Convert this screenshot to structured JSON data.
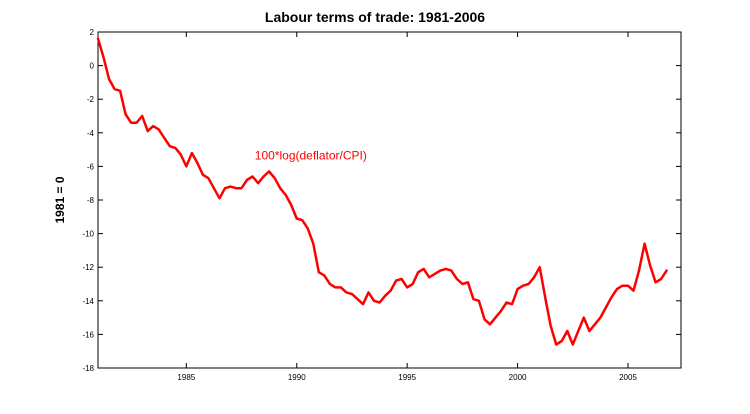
{
  "chart_data": {
    "type": "line",
    "title": "Labour terms of trade: 1981-2006",
    "xlabel": "",
    "ylabel": "1981 = 0",
    "xlim": [
      1981,
      2007.4
    ],
    "ylim": [
      -18,
      2
    ],
    "xticks": [
      1985,
      1990,
      1995,
      2000,
      2005
    ],
    "yticks": [
      2,
      0,
      -2,
      -4,
      -6,
      -8,
      -10,
      -12,
      -14,
      -16,
      -18
    ],
    "grid": false,
    "annotation": {
      "text": "100*log(deflator/CPI)",
      "x": 1988.1,
      "y": -5.6
    },
    "series": [
      {
        "name": "100*log(deflator/CPI)",
        "color": "#ff0000",
        "x": [
          1981.0,
          1981.25,
          1981.5,
          1981.75,
          1982.0,
          1982.25,
          1982.5,
          1982.75,
          1983.0,
          1983.25,
          1983.5,
          1983.75,
          1984.0,
          1984.25,
          1984.5,
          1984.75,
          1985.0,
          1985.25,
          1985.5,
          1985.75,
          1986.0,
          1986.25,
          1986.5,
          1986.75,
          1987.0,
          1987.25,
          1987.5,
          1987.75,
          1988.0,
          1988.25,
          1988.5,
          1988.75,
          1989.0,
          1989.25,
          1989.5,
          1989.75,
          1990.0,
          1990.25,
          1990.5,
          1990.75,
          1991.0,
          1991.25,
          1991.5,
          1991.75,
          1992.0,
          1992.25,
          1992.5,
          1992.75,
          1993.0,
          1993.25,
          1993.5,
          1993.75,
          1994.0,
          1994.25,
          1994.5,
          1994.75,
          1995.0,
          1995.25,
          1995.5,
          1995.75,
          1996.0,
          1996.25,
          1996.5,
          1996.75,
          1997.0,
          1997.25,
          1997.5,
          1997.75,
          1998.0,
          1998.25,
          1998.5,
          1998.75,
          1999.0,
          1999.25,
          1999.5,
          1999.75,
          2000.0,
          2000.25,
          2000.5,
          2000.75,
          2001.0,
          2001.25,
          2001.5,
          2001.75,
          2002.0,
          2002.25,
          2002.5,
          2002.75,
          2003.0,
          2003.25,
          2003.5,
          2003.75,
          2004.0,
          2004.25,
          2004.5,
          2004.75,
          2005.0,
          2005.25,
          2005.5,
          2005.75,
          2006.0,
          2006.25,
          2006.5,
          2006.75
        ],
        "values": [
          1.6,
          0.5,
          -0.8,
          -1.4,
          -1.5,
          -2.9,
          -3.4,
          -3.4,
          -3.0,
          -3.9,
          -3.6,
          -3.8,
          -4.3,
          -4.8,
          -4.9,
          -5.3,
          -6.0,
          -5.2,
          -5.8,
          -6.5,
          -6.7,
          -7.3,
          -7.9,
          -7.3,
          -7.2,
          -7.3,
          -7.3,
          -6.8,
          -6.6,
          -7.0,
          -6.6,
          -6.3,
          -6.7,
          -7.3,
          -7.7,
          -8.3,
          -9.1,
          -9.2,
          -9.7,
          -10.6,
          -12.3,
          -12.5,
          -13.0,
          -13.2,
          -13.2,
          -13.5,
          -13.6,
          -13.9,
          -14.2,
          -13.5,
          -14.0,
          -14.1,
          -13.7,
          -13.4,
          -12.8,
          -12.7,
          -13.2,
          -13.0,
          -12.3,
          -12.1,
          -12.6,
          -12.4,
          -12.2,
          -12.1,
          -12.2,
          -12.7,
          -13.0,
          -12.9,
          -13.9,
          -14.0,
          -15.1,
          -15.4,
          -15.0,
          -14.6,
          -14.1,
          -14.2,
          -13.3,
          -13.1,
          -13.0,
          -12.6,
          -12.0,
          -13.8,
          -15.5,
          -16.6,
          -16.4,
          -15.8,
          -16.6,
          -15.8,
          -15.0,
          -15.8,
          -15.4,
          -15.0,
          -14.4,
          -13.8,
          -13.3,
          -13.1,
          -13.1,
          -13.4,
          -12.2,
          -10.6,
          -11.9,
          -12.9,
          -12.7,
          -12.2
        ]
      }
    ]
  }
}
